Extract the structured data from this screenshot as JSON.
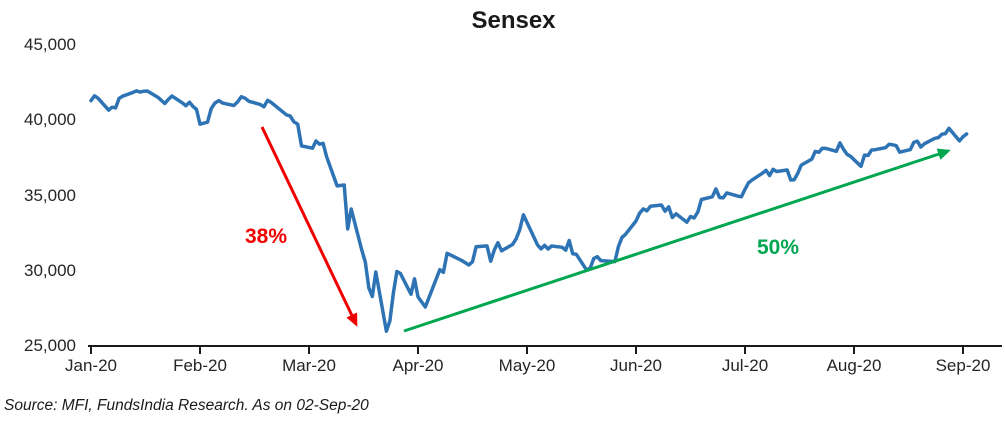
{
  "source": "Source: MFI, FundsIndia Research. As on 02-Sep-20",
  "chart_data": {
    "type": "line",
    "title": "Sensex",
    "xlabel": "",
    "ylabel": "",
    "grid": false,
    "legend": "none",
    "ylim": [
      25000,
      45000
    ],
    "x_tick_labels": [
      "Jan-20",
      "Feb-20",
      "Mar-20",
      "Apr-20",
      "May-20",
      "Jun-20",
      "Jul-20",
      "Aug-20",
      "Sep-20"
    ],
    "y_ticks": [
      {
        "value": 25000,
        "label": "25,000"
      },
      {
        "value": 30000,
        "label": "30,000"
      },
      {
        "value": 35000,
        "label": "35,000"
      },
      {
        "value": 40000,
        "label": "40,000"
      },
      {
        "value": 45000,
        "label": "45,000"
      }
    ],
    "series": [
      {
        "name": "Sensex",
        "color": "#2E74B5",
        "points": [
          [
            1,
            1,
            41306
          ],
          [
            1,
            2,
            41627
          ],
          [
            1,
            3,
            41465
          ],
          [
            1,
            6,
            40677
          ],
          [
            1,
            7,
            40870
          ],
          [
            1,
            8,
            40818
          ],
          [
            1,
            9,
            41452
          ],
          [
            1,
            10,
            41600
          ],
          [
            1,
            13,
            41860
          ],
          [
            1,
            14,
            41953
          ],
          [
            1,
            15,
            41873
          ],
          [
            1,
            16,
            41933
          ],
          [
            1,
            17,
            41945
          ],
          [
            1,
            20,
            41529
          ],
          [
            1,
            21,
            41324
          ],
          [
            1,
            22,
            41115
          ],
          [
            1,
            23,
            41386
          ],
          [
            1,
            24,
            41613
          ],
          [
            1,
            27,
            41155
          ],
          [
            1,
            28,
            40967
          ],
          [
            1,
            29,
            41199
          ],
          [
            1,
            30,
            40914
          ],
          [
            1,
            31,
            40723
          ],
          [
            2,
            1,
            39735
          ],
          [
            2,
            3,
            39872
          ],
          [
            2,
            4,
            40789
          ],
          [
            2,
            5,
            41143
          ],
          [
            2,
            6,
            41306
          ],
          [
            2,
            7,
            41142
          ],
          [
            2,
            10,
            40980
          ],
          [
            2,
            11,
            41217
          ],
          [
            2,
            12,
            41566
          ],
          [
            2,
            13,
            41460
          ],
          [
            2,
            14,
            41258
          ],
          [
            2,
            17,
            41056
          ],
          [
            2,
            18,
            40895
          ],
          [
            2,
            19,
            41323
          ],
          [
            2,
            20,
            41170
          ],
          [
            2,
            24,
            40363
          ],
          [
            2,
            25,
            40282
          ],
          [
            2,
            26,
            39889
          ],
          [
            2,
            27,
            39746
          ],
          [
            2,
            28,
            38297
          ],
          [
            3,
            2,
            38144
          ],
          [
            3,
            3,
            38624
          ],
          [
            3,
            4,
            38410
          ],
          [
            3,
            5,
            38471
          ],
          [
            3,
            6,
            37577
          ],
          [
            3,
            9,
            35635
          ],
          [
            3,
            11,
            35697
          ],
          [
            3,
            12,
            32778
          ],
          [
            3,
            13,
            34103
          ],
          [
            3,
            16,
            31390
          ],
          [
            3,
            17,
            30579
          ],
          [
            3,
            18,
            28870
          ],
          [
            3,
            19,
            28288
          ],
          [
            3,
            20,
            29916
          ],
          [
            3,
            23,
            25981
          ],
          [
            3,
            24,
            26674
          ],
          [
            3,
            25,
            28536
          ],
          [
            3,
            26,
            29947
          ],
          [
            3,
            27,
            29816
          ],
          [
            3,
            30,
            28440
          ],
          [
            3,
            31,
            29468
          ],
          [
            4,
            1,
            28265
          ],
          [
            4,
            3,
            27591
          ],
          [
            4,
            7,
            30067
          ],
          [
            4,
            8,
            29894
          ],
          [
            4,
            9,
            31160
          ],
          [
            4,
            13,
            30690
          ],
          [
            4,
            15,
            30380
          ],
          [
            4,
            16,
            30603
          ],
          [
            4,
            17,
            31589
          ],
          [
            4,
            20,
            31648
          ],
          [
            4,
            21,
            30637
          ],
          [
            4,
            22,
            31380
          ],
          [
            4,
            23,
            31863
          ],
          [
            4,
            24,
            31327
          ],
          [
            4,
            27,
            31743
          ],
          [
            4,
            28,
            32115
          ],
          [
            4,
            29,
            32720
          ],
          [
            4,
            30,
            33718
          ],
          [
            5,
            4,
            31715
          ],
          [
            5,
            5,
            31454
          ],
          [
            5,
            6,
            31686
          ],
          [
            5,
            7,
            31443
          ],
          [
            5,
            8,
            31643
          ],
          [
            5,
            11,
            31561
          ],
          [
            5,
            12,
            31371
          ],
          [
            5,
            13,
            32009
          ],
          [
            5,
            14,
            31123
          ],
          [
            5,
            15,
            31098
          ],
          [
            5,
            18,
            30029
          ],
          [
            5,
            19,
            30196
          ],
          [
            5,
            20,
            30818
          ],
          [
            5,
            21,
            30933
          ],
          [
            5,
            22,
            30673
          ],
          [
            5,
            26,
            30609
          ],
          [
            5,
            27,
            31605
          ],
          [
            5,
            28,
            32201
          ],
          [
            5,
            29,
            32424
          ],
          [
            6,
            1,
            33304
          ],
          [
            6,
            2,
            33826
          ],
          [
            6,
            3,
            34110
          ],
          [
            6,
            4,
            33981
          ],
          [
            6,
            5,
            34287
          ],
          [
            6,
            8,
            34371
          ],
          [
            6,
            9,
            33957
          ],
          [
            6,
            10,
            34247
          ],
          [
            6,
            11,
            33538
          ],
          [
            6,
            12,
            33781
          ],
          [
            6,
            15,
            33229
          ],
          [
            6,
            16,
            33605
          ],
          [
            6,
            17,
            33508
          ],
          [
            6,
            18,
            33895
          ],
          [
            6,
            19,
            34732
          ],
          [
            6,
            22,
            34911
          ],
          [
            6,
            23,
            35430
          ],
          [
            6,
            24,
            34869
          ],
          [
            6,
            25,
            34842
          ],
          [
            6,
            26,
            35171
          ],
          [
            6,
            29,
            34961
          ],
          [
            6,
            30,
            34916
          ],
          [
            7,
            1,
            35414
          ],
          [
            7,
            2,
            35844
          ],
          [
            7,
            3,
            36021
          ],
          [
            7,
            6,
            36487
          ],
          [
            7,
            7,
            36675
          ],
          [
            7,
            8,
            36329
          ],
          [
            7,
            9,
            36738
          ],
          [
            7,
            10,
            36594
          ],
          [
            7,
            13,
            36694
          ],
          [
            7,
            14,
            36033
          ],
          [
            7,
            15,
            36051
          ],
          [
            7,
            16,
            36471
          ],
          [
            7,
            17,
            37020
          ],
          [
            7,
            20,
            37419
          ],
          [
            7,
            21,
            37930
          ],
          [
            7,
            22,
            37872
          ],
          [
            7,
            23,
            38140
          ],
          [
            7,
            24,
            38129
          ],
          [
            7,
            27,
            37935
          ],
          [
            7,
            28,
            38493
          ],
          [
            7,
            29,
            38071
          ],
          [
            7,
            30,
            37736
          ],
          [
            7,
            31,
            37607
          ],
          [
            8,
            3,
            36939
          ],
          [
            8,
            4,
            37687
          ],
          [
            8,
            5,
            37663
          ],
          [
            8,
            6,
            38025
          ],
          [
            8,
            7,
            38041
          ],
          [
            8,
            10,
            38182
          ],
          [
            8,
            11,
            38407
          ],
          [
            8,
            12,
            38370
          ],
          [
            8,
            13,
            38310
          ],
          [
            8,
            14,
            37877
          ],
          [
            8,
            17,
            38051
          ],
          [
            8,
            18,
            38528
          ],
          [
            8,
            19,
            38615
          ],
          [
            8,
            20,
            38220
          ],
          [
            8,
            21,
            38435
          ],
          [
            8,
            24,
            38799
          ],
          [
            8,
            25,
            38844
          ],
          [
            8,
            26,
            39074
          ],
          [
            8,
            27,
            39113
          ],
          [
            8,
            28,
            39467
          ],
          [
            8,
            31,
            38628
          ],
          [
            9,
            1,
            38900
          ],
          [
            9,
            2,
            39086
          ]
        ]
      }
    ],
    "annotations": {
      "decline": {
        "label": "38%",
        "color": "#F00000"
      },
      "recovery": {
        "label": "50%",
        "color": "#00A650"
      }
    }
  }
}
